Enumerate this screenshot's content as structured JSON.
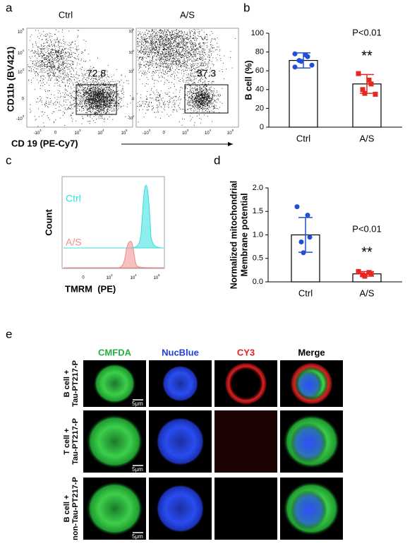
{
  "panels": [
    "a",
    "b",
    "c",
    "d",
    "e"
  ],
  "flow": {
    "titles": [
      "Ctrl",
      "A/S"
    ],
    "gates": [
      72.8,
      37.3
    ],
    "yticks": [
      {
        "base": "10",
        "exp": "5"
      },
      {
        "base": "10",
        "exp": "4"
      },
      {
        "base": "10",
        "exp": "3"
      },
      "0",
      {
        "base": "-10",
        "exp": "3"
      }
    ],
    "xticks": [
      {
        "base": "-10",
        "exp": "3"
      },
      "0",
      {
        "base": "10",
        "exp": "3"
      },
      {
        "base": "10",
        "exp": "4"
      },
      {
        "base": "10",
        "exp": "5"
      }
    ],
    "ylabel": "CD11b (BV421)",
    "xlabel": "CD 19 (PE-Cy7)"
  },
  "chart_data": [
    {
      "type": "bar",
      "categories": [
        "Ctrl",
        "A/S"
      ],
      "values": [
        71,
        46
      ],
      "errors": [
        8,
        10
      ],
      "points": [
        [
          78,
          77,
          75,
          71,
          70,
          66,
          64
        ],
        [
          57,
          50,
          46,
          40,
          36,
          35
        ]
      ],
      "colors": [
        "#1f4fd6",
        "#e8281e"
      ],
      "markers": [
        "circle",
        "square"
      ],
      "ylabel": "B cell (%)",
      "ylim": [
        0,
        100
      ],
      "yticks": [
        0,
        20,
        40,
        60,
        80,
        100
      ],
      "annotations": [
        "P<0.01",
        "**"
      ]
    },
    {
      "type": "bar",
      "categories": [
        "Ctrl",
        "A/S"
      ],
      "values": [
        1.0,
        0.17
      ],
      "errors": [
        0.37,
        0.05
      ],
      "points": [
        [
          1.6,
          1.42,
          0.95,
          0.85,
          0.62
        ],
        [
          0.22,
          0.2,
          0.17,
          0.15,
          0.12
        ]
      ],
      "colors": [
        "#1f4fd6",
        "#e8281e"
      ],
      "markers": [
        "circle",
        "square"
      ],
      "ylabel": [
        "Normalized mitochondrial",
        "Membrane potential"
      ],
      "ylim": [
        0,
        2.0
      ],
      "yticks": [
        {
          "value": 0,
          "label": "0.0"
        },
        0.5,
        {
          "value": 1,
          "label": "1.0"
        },
        1.5,
        {
          "value": 2,
          "label": "2.0"
        }
      ],
      "annotations": [
        "P<0.01",
        "**"
      ]
    }
  ],
  "histogram": {
    "labels": [
      "Ctrl",
      "A/S"
    ],
    "colors": [
      "#33dede",
      "#f28b8b"
    ],
    "ylabel": "Count",
    "xlabel": "TMRM  (PE)",
    "xticks": [
      "0",
      {
        "base": "10",
        "exp": "3"
      },
      {
        "base": "10",
        "exp": "4"
      },
      {
        "base": "10",
        "exp": "5"
      }
    ]
  },
  "microscopy": {
    "columns": [
      {
        "label": "CMFDA",
        "color": "#27b043"
      },
      {
        "label": "NucBlue",
        "color": "#1f3fe0"
      },
      {
        "label": "CY3",
        "color": "#e02020"
      },
      {
        "label": "Merge",
        "color": "#000000"
      }
    ],
    "rows": [
      [
        "B cell +",
        "Tau-PT217-P"
      ],
      [
        "T cell +",
        "Tau-PT217-P"
      ],
      [
        "B cell +",
        "non-Tau-PT217-P"
      ]
    ],
    "scale_bar": "5μm"
  }
}
